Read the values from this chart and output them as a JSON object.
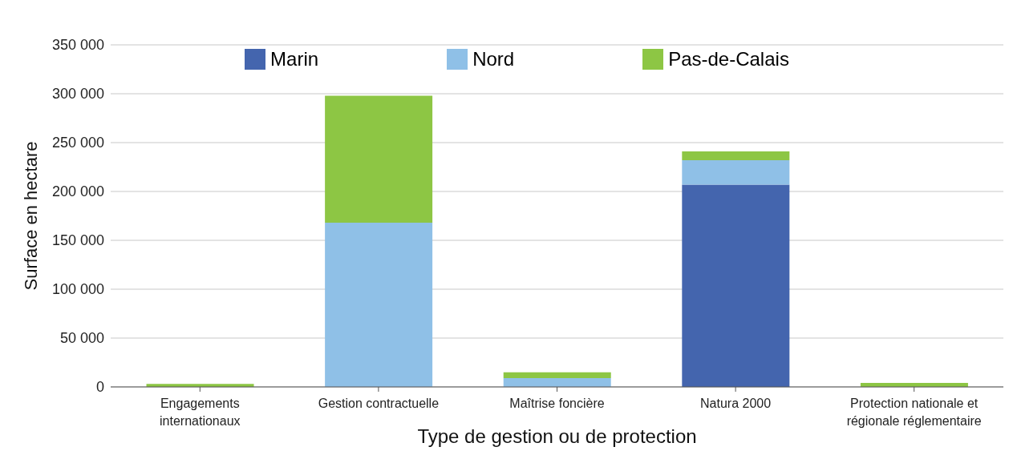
{
  "chart_data": {
    "type": "bar",
    "stacked": true,
    "xlabel": "Type de gestion ou de protection",
    "ylabel": "Surface en hectare",
    "categories": [
      "Engagements internationaux",
      "Gestion contractuelle",
      "Maîtrise foncière",
      "Natura 2000",
      "Protection nationale et régionale réglementaire"
    ],
    "series": [
      {
        "name": "Marin",
        "color": "#4465ae",
        "values": [
          0,
          0,
          0,
          207000,
          0
        ]
      },
      {
        "name": "Nord",
        "color": "#8fc0e7",
        "values": [
          0,
          168000,
          9000,
          25000,
          0
        ]
      },
      {
        "name": "Pas-de-Calais",
        "color": "#8dc644",
        "values": [
          3000,
          130000,
          6000,
          9000,
          4000
        ]
      }
    ],
    "ylim": [
      0,
      350000
    ],
    "yticks": [
      0,
      50000,
      100000,
      150000,
      200000,
      250000,
      300000,
      350000
    ],
    "grid": "y",
    "legend": "top"
  }
}
